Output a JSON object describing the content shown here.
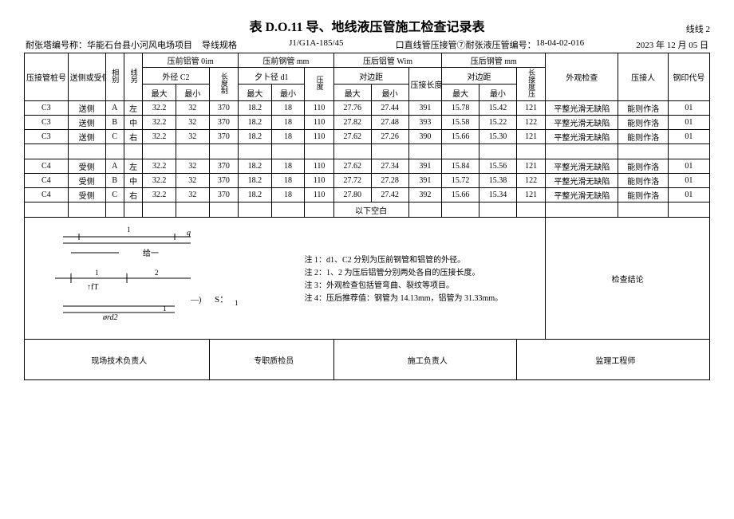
{
  "title": "表 D.O.11 导、地线液压管施工检查记录表",
  "line_label": "线线 2",
  "meta": {
    "proj_label": "耐张塔编号称：",
    "proj_value": "华能石台县小河风电场项目",
    "spec_label": "导线规格",
    "spec_value": "J1/G1A-185/45",
    "type_label": "口直线管压接管⑦耐张液压管编号：",
    "type_value": "18-04-02-016",
    "date": "2023 年 12 月 05 日"
  },
  "headers": {
    "c1": "压接管桩号",
    "c2": "送侧或受侧",
    "c3": "相别",
    "c4": "线另",
    "g1": "压前铝管 0im",
    "g1a": "外径 C2",
    "g1v": "长度制",
    "g2": "压前钢管 mm",
    "g2a": "夕卜径 d1",
    "g2v": "压度",
    "g3": "压后铝管 Wim",
    "g3a": "对边距",
    "g3b": "压接长度",
    "g4": "压后钢管 mm",
    "g4a": "对边距",
    "g4v": "长接度压",
    "max": "最大",
    "min": "最小",
    "c_wg": "外观检查",
    "c_yjr": "压接人",
    "c_gy": "钢印代号"
  },
  "rows": [
    {
      "n": "C3",
      "s": "送侧",
      "p": "A",
      "l": "左",
      "a1": "32.2",
      "a2": "32",
      "a3": "370",
      "b1": "18.2",
      "b2": "18",
      "b3": "110",
      "c1": "27.76",
      "c2": "27.44",
      "c3": "391",
      "d1": "15.78",
      "d2": "15.42",
      "d3": "121",
      "wg": "平整光滑无缺陷",
      "yj": "能则作洛",
      "gy": "01"
    },
    {
      "n": "C3",
      "s": "送侧",
      "p": "B",
      "l": "中",
      "a1": "32.2",
      "a2": "32",
      "a3": "370",
      "b1": "18.2",
      "b2": "18",
      "b3": "110",
      "c1": "27.82",
      "c2": "27.48",
      "c3": "393",
      "d1": "15.58",
      "d2": "15.22",
      "d3": "122",
      "wg": "平整光滑无缺陷",
      "yj": "能则作洛",
      "gy": "01"
    },
    {
      "n": "C3",
      "s": "送侧",
      "p": "C",
      "l": "右",
      "a1": "32.2",
      "a2": "32",
      "a3": "370",
      "b1": "18.2",
      "b2": "18",
      "b3": "110",
      "c1": "27.62",
      "c2": "27.26",
      "c3": "390",
      "d1": "15.66",
      "d2": "15.30",
      "d3": "121",
      "wg": "平整光滑无缺陷",
      "yj": "能则作洛",
      "gy": "01"
    },
    {
      "n": "C4",
      "s": "受侧",
      "p": "A",
      "l": "左",
      "a1": "32.2",
      "a2": "32",
      "a3": "370",
      "b1": "18.2",
      "b2": "18",
      "b3": "110",
      "c1": "27.62",
      "c2": "27.34",
      "c3": "391",
      "d1": "15.84",
      "d2": "15.56",
      "d3": "121",
      "wg": "平整光滑无缺陷",
      "yj": "能则作洛",
      "gy": "01"
    },
    {
      "n": "C4",
      "s": "受侧",
      "p": "B",
      "l": "中",
      "a1": "32.2",
      "a2": "32",
      "a3": "370",
      "b1": "18.2",
      "b2": "18",
      "b3": "110",
      "c1": "27.72",
      "c2": "27.28",
      "c3": "391",
      "d1": "15.72",
      "d2": "15.38",
      "d3": "122",
      "wg": "平整光滑无缺陷",
      "yj": "能则作洛",
      "gy": "01"
    },
    {
      "n": "C4",
      "s": "受侧",
      "p": "C",
      "l": "右",
      "a1": "32.2",
      "a2": "32",
      "a3": "370",
      "b1": "18.2",
      "b2": "18",
      "b3": "110",
      "c1": "27.80",
      "c2": "27.42",
      "c3": "392",
      "d1": "15.66",
      "d2": "15.34",
      "d3": "121",
      "wg": "平整光滑无缺陷",
      "yj": "能则作洛",
      "gy": "01"
    }
  ],
  "below_blank": "以下空白",
  "notes": {
    "n1": "注 1：d1、C2 分别为压前钢管和铝管的外径。",
    "n2": "注 2：1、2 为压后铝管分别两处各自的压接长度。",
    "n3": "注 3：外观检查包括管弯曲、裂纹等项目。",
    "n4": "注 4：压后推荐值：钢管为 14.13mm，铝管为 31.33mm。"
  },
  "check_conclusion": "检查结论",
  "sign": {
    "s1": "现场技术负责人",
    "s2": "专职质检员",
    "s3": "施工负责人",
    "s4": "监理工程师"
  },
  "diagram_labels": {
    "g": "g",
    "gei": "给一",
    "ft": "↑fT",
    "s": "S：",
    "d2": "ørd2"
  }
}
